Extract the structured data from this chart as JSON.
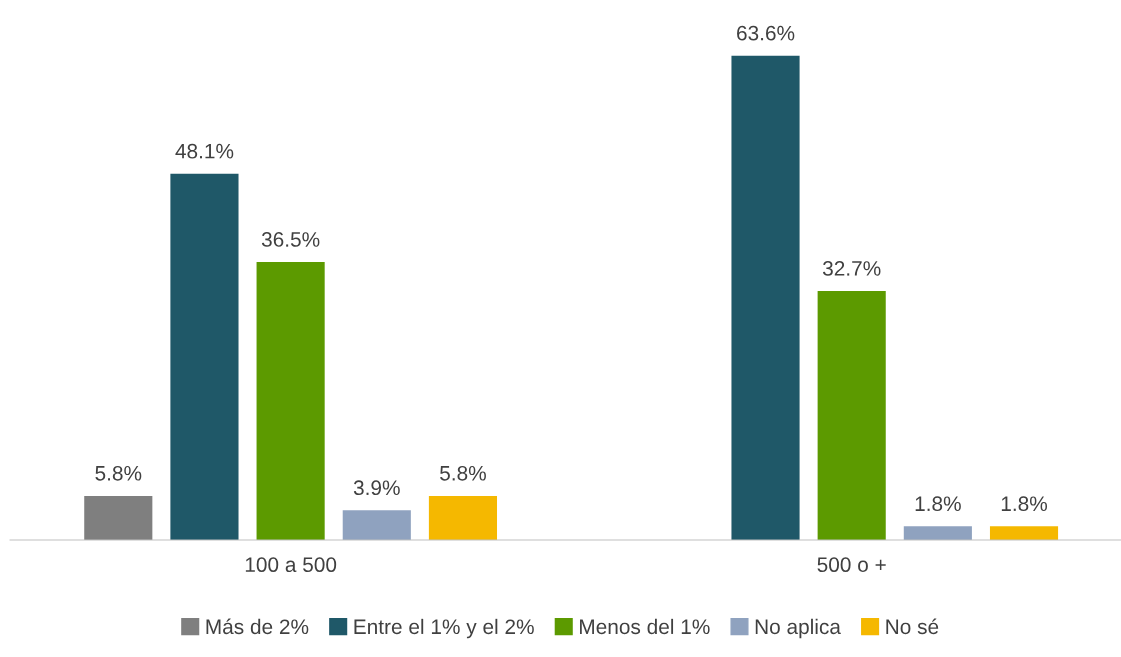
{
  "chart_data": {
    "type": "bar",
    "categories": [
      "100 a 500",
      "500 o +"
    ],
    "series": [
      {
        "name": "Más de 2%",
        "color": "#7f7f7f",
        "values": [
          5.8,
          null
        ],
        "value_labels": [
          "5.8%",
          null
        ]
      },
      {
        "name": "Entre el 1% y el 2%",
        "color": "#1f5868",
        "values": [
          48.1,
          63.6
        ],
        "value_labels": [
          "48.1%",
          "63.6%"
        ]
      },
      {
        "name": "Menos del 1%",
        "color": "#5c9a00",
        "values": [
          36.5,
          32.7
        ],
        "value_labels": [
          "36.5%",
          "32.7%"
        ]
      },
      {
        "name": "No aplica",
        "color": "#8fa2bf",
        "values": [
          3.9,
          1.8
        ],
        "value_labels": [
          "3.9%",
          "1.8%"
        ]
      },
      {
        "name": "No sé",
        "color": "#f5b800",
        "values": [
          5.8,
          1.8
        ],
        "value_labels": [
          "5.8%",
          "1.8%"
        ]
      }
    ],
    "grid": false,
    "legend": "bottom"
  }
}
